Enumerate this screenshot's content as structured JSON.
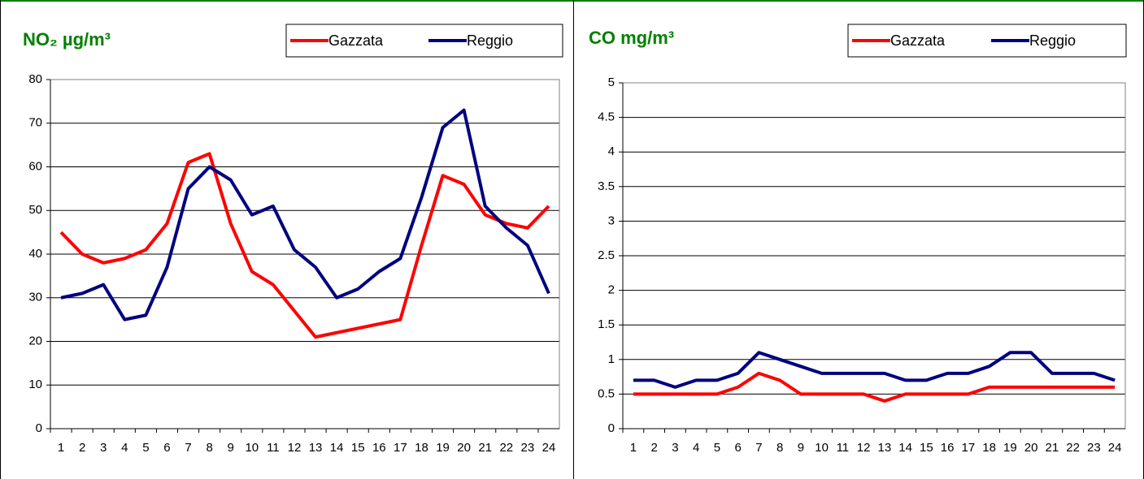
{
  "chart_data": [
    {
      "type": "line",
      "title": "NO₂ µg/m³",
      "categories": [
        "1",
        "2",
        "3",
        "4",
        "5",
        "6",
        "7",
        "8",
        "9",
        "10",
        "11",
        "12",
        "13",
        "14",
        "15",
        "16",
        "17",
        "18",
        "19",
        "20",
        "21",
        "22",
        "23",
        "24"
      ],
      "series": [
        {
          "name": "Gazzata",
          "color": "#ff0000",
          "values": [
            45,
            40,
            38,
            39,
            41,
            47,
            61,
            63,
            47,
            36,
            33,
            27,
            21,
            22,
            23,
            24,
            25,
            42,
            58,
            56,
            49,
            47,
            46,
            51
          ]
        },
        {
          "name": "Reggio",
          "color": "#000080",
          "values": [
            30,
            31,
            33,
            25,
            26,
            37,
            55,
            60,
            57,
            49,
            51,
            41,
            37,
            30,
            32,
            36,
            39,
            53,
            69,
            73,
            51,
            46,
            42,
            31
          ]
        }
      ],
      "ylim": [
        0,
        80
      ],
      "yticks": [
        0,
        10,
        20,
        30,
        40,
        50,
        60,
        70,
        80
      ],
      "grid": true
    },
    {
      "type": "line",
      "title": "CO mg/m³",
      "categories": [
        "1",
        "2",
        "3",
        "4",
        "5",
        "6",
        "7",
        "8",
        "9",
        "10",
        "11",
        "12",
        "13",
        "14",
        "15",
        "16",
        "17",
        "18",
        "19",
        "20",
        "21",
        "22",
        "23",
        "24"
      ],
      "series": [
        {
          "name": "Gazzata",
          "color": "#ff0000",
          "values": [
            0.5,
            0.5,
            0.5,
            0.5,
            0.5,
            0.6,
            0.8,
            0.7,
            0.5,
            0.5,
            0.5,
            0.5,
            0.4,
            0.5,
            0.5,
            0.5,
            0.5,
            0.6,
            0.6,
            0.6,
            0.6,
            0.6,
            0.6,
            0.6
          ]
        },
        {
          "name": "Reggio",
          "color": "#000080",
          "values": [
            0.7,
            0.7,
            0.6,
            0.7,
            0.7,
            0.8,
            1.1,
            1.0,
            0.9,
            0.8,
            0.8,
            0.8,
            0.8,
            0.7,
            0.7,
            0.8,
            0.8,
            0.9,
            1.1,
            1.1,
            0.8,
            0.8,
            0.8,
            0.7
          ]
        }
      ],
      "ylim": [
        0,
        5
      ],
      "yticks": [
        0,
        0.5,
        1,
        1.5,
        2,
        2.5,
        3,
        3.5,
        4,
        4.5,
        5
      ],
      "grid": true
    }
  ]
}
